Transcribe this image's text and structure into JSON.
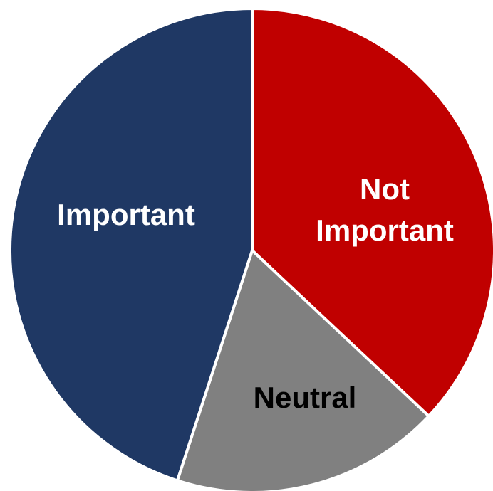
{
  "chart_data": {
    "type": "pie",
    "categories": [
      "Not Important",
      "Neutral",
      "Important"
    ],
    "values": [
      37,
      18,
      45
    ],
    "units": "percent",
    "colors": [
      "#C00000",
      "#808080",
      "#1F3864"
    ],
    "label_colors": [
      "#FFFFFF",
      "#000000",
      "#FFFFFF"
    ],
    "labels": [
      {
        "lines": [
          "Not",
          "Important"
        ]
      },
      {
        "lines": [
          "Neutral"
        ]
      },
      {
        "lines": [
          "Important"
        ]
      }
    ],
    "start_angle_deg": 0,
    "direction": "clockwise",
    "legend": "none",
    "title": ""
  }
}
